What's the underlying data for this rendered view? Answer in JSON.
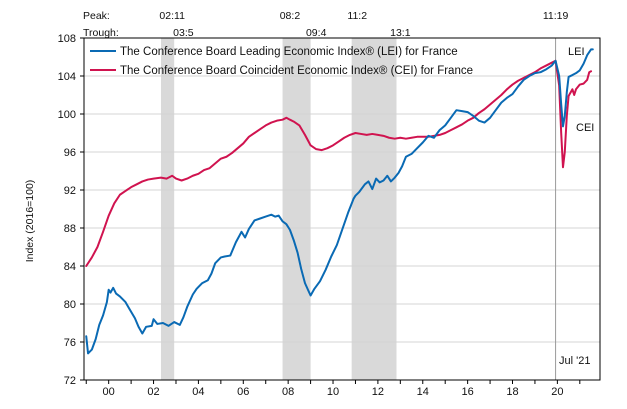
{
  "chart_data": {
    "type": "line",
    "title": "",
    "ylabel": "Index (2016=100)",
    "xlabel": "",
    "ylim": [
      72,
      108
    ],
    "y_ticks": [
      72,
      76,
      80,
      84,
      88,
      92,
      96,
      100,
      104,
      108
    ],
    "x_range": [
      1998.9,
      2021.9
    ],
    "x_tick_labels": [
      {
        "year": 2000,
        "label": "00"
      },
      {
        "year": 2002,
        "label": "02"
      },
      {
        "year": 2004,
        "label": "04"
      },
      {
        "year": 2006,
        "label": "06"
      },
      {
        "year": 2008,
        "label": "08"
      },
      {
        "year": 2010,
        "label": "10"
      },
      {
        "year": 2012,
        "label": "12"
      },
      {
        "year": 2014,
        "label": "14"
      },
      {
        "year": 2016,
        "label": "16"
      },
      {
        "year": 2018,
        "label": "18"
      },
      {
        "year": 2020,
        "label": "20"
      }
    ],
    "peak_label": "Peak:",
    "trough_label": "Trough:",
    "peaks": [
      {
        "label": "02:11",
        "year": 2002.83
      },
      {
        "label": "08:2",
        "year": 2008.08
      },
      {
        "label": "11:2",
        "year": 2011.08
      },
      {
        "label": "11:19",
        "year": 2019.92
      }
    ],
    "troughs": [
      {
        "label": "03:5",
        "year": 2003.33
      },
      {
        "label": "09:4",
        "year": 2009.25
      },
      {
        "label": "13:1",
        "year": 2013.0
      }
    ],
    "recessions": [
      {
        "start": 2002.33,
        "end": 2002.92
      },
      {
        "start": 2007.75,
        "end": 2009.0
      },
      {
        "start": 2010.83,
        "end": 2012.83
      }
    ],
    "marker_line_year": 2019.92,
    "annotations": {
      "lei": "LEI",
      "cei": "CEI",
      "date": "Jul '21"
    },
    "grid": "horizontal",
    "legend_position": "top-left",
    "series": [
      {
        "name": "The Conference Board Leading Economic Index® (LEI) for France",
        "color": "#0a6ab4",
        "points": [
          [
            1999.0,
            76.6
          ],
          [
            1999.08,
            74.8
          ],
          [
            1999.25,
            75.2
          ],
          [
            1999.42,
            76.3
          ],
          [
            1999.58,
            77.8
          ],
          [
            1999.75,
            78.8
          ],
          [
            1999.92,
            80.2
          ],
          [
            2000.0,
            81.5
          ],
          [
            2000.08,
            81.2
          ],
          [
            2000.2,
            81.7
          ],
          [
            2000.33,
            81.1
          ],
          [
            2000.5,
            80.8
          ],
          [
            2000.75,
            80.2
          ],
          [
            2000.92,
            79.5
          ],
          [
            2001.17,
            78.5
          ],
          [
            2001.33,
            77.6
          ],
          [
            2001.5,
            76.9
          ],
          [
            2001.67,
            77.6
          ],
          [
            2001.92,
            77.7
          ],
          [
            2002.0,
            78.4
          ],
          [
            2002.17,
            77.9
          ],
          [
            2002.42,
            78.0
          ],
          [
            2002.67,
            77.7
          ],
          [
            2002.92,
            78.1
          ],
          [
            2003.17,
            77.8
          ],
          [
            2003.33,
            78.6
          ],
          [
            2003.5,
            79.7
          ],
          [
            2003.75,
            81.0
          ],
          [
            2003.92,
            81.6
          ],
          [
            2004.17,
            82.2
          ],
          [
            2004.42,
            82.5
          ],
          [
            2004.58,
            83.2
          ],
          [
            2004.75,
            84.3
          ],
          [
            2005.0,
            84.9
          ],
          [
            2005.17,
            85.0
          ],
          [
            2005.42,
            85.1
          ],
          [
            2005.67,
            86.5
          ],
          [
            2005.83,
            87.2
          ],
          [
            2005.92,
            87.6
          ],
          [
            2006.08,
            87.0
          ],
          [
            2006.25,
            87.9
          ],
          [
            2006.5,
            88.8
          ],
          [
            2006.75,
            89.0
          ],
          [
            2007.0,
            89.2
          ],
          [
            2007.25,
            89.4
          ],
          [
            2007.42,
            89.2
          ],
          [
            2007.58,
            89.3
          ],
          [
            2007.75,
            88.7
          ],
          [
            2007.92,
            88.4
          ],
          [
            2008.08,
            87.8
          ],
          [
            2008.25,
            86.7
          ],
          [
            2008.42,
            85.4
          ],
          [
            2008.58,
            83.7
          ],
          [
            2008.75,
            82.2
          ],
          [
            2008.92,
            81.3
          ],
          [
            2009.0,
            80.9
          ],
          [
            2009.17,
            81.6
          ],
          [
            2009.42,
            82.4
          ],
          [
            2009.67,
            83.6
          ],
          [
            2009.92,
            85.0
          ],
          [
            2010.17,
            86.2
          ],
          [
            2010.42,
            87.9
          ],
          [
            2010.67,
            89.6
          ],
          [
            2010.92,
            91.1
          ],
          [
            2011.0,
            91.4
          ],
          [
            2011.17,
            91.8
          ],
          [
            2011.42,
            92.6
          ],
          [
            2011.58,
            92.9
          ],
          [
            2011.75,
            92.1
          ],
          [
            2011.92,
            93.2
          ],
          [
            2012.08,
            92.8
          ],
          [
            2012.25,
            93.0
          ],
          [
            2012.42,
            93.5
          ],
          [
            2012.58,
            92.9
          ],
          [
            2012.75,
            93.3
          ],
          [
            2012.92,
            93.8
          ],
          [
            2013.08,
            94.5
          ],
          [
            2013.25,
            95.5
          ],
          [
            2013.5,
            95.8
          ],
          [
            2013.75,
            96.4
          ],
          [
            2014.0,
            97.0
          ],
          [
            2014.25,
            97.7
          ],
          [
            2014.5,
            97.5
          ],
          [
            2014.75,
            98.3
          ],
          [
            2015.0,
            98.8
          ],
          [
            2015.25,
            99.6
          ],
          [
            2015.5,
            100.4
          ],
          [
            2015.75,
            100.3
          ],
          [
            2016.0,
            100.2
          ],
          [
            2016.25,
            99.8
          ],
          [
            2016.5,
            99.3
          ],
          [
            2016.75,
            99.1
          ],
          [
            2017.0,
            99.6
          ],
          [
            2017.25,
            100.4
          ],
          [
            2017.5,
            101.2
          ],
          [
            2017.75,
            101.7
          ],
          [
            2018.0,
            102.1
          ],
          [
            2018.25,
            102.9
          ],
          [
            2018.5,
            103.6
          ],
          [
            2018.75,
            104.0
          ],
          [
            2019.0,
            104.3
          ],
          [
            2019.25,
            104.4
          ],
          [
            2019.5,
            104.7
          ],
          [
            2019.75,
            105.1
          ],
          [
            2019.92,
            105.6
          ],
          [
            2020.08,
            104.0
          ],
          [
            2020.17,
            101.0
          ],
          [
            2020.25,
            98.7
          ],
          [
            2020.33,
            99.8
          ],
          [
            2020.42,
            102.3
          ],
          [
            2020.5,
            103.9
          ],
          [
            2020.67,
            104.1
          ],
          [
            2020.83,
            104.3
          ],
          [
            2021.0,
            104.6
          ],
          [
            2021.17,
            105.3
          ],
          [
            2021.33,
            106.2
          ],
          [
            2021.5,
            106.8
          ],
          [
            2021.58,
            106.8
          ]
        ]
      },
      {
        "name": "The Conference Board Coincident Economic Index® (CEI) for France",
        "color": "#d0134f",
        "points": [
          [
            1999.0,
            84.0
          ],
          [
            1999.25,
            84.9
          ],
          [
            1999.5,
            86.0
          ],
          [
            1999.75,
            87.6
          ],
          [
            2000.0,
            89.3
          ],
          [
            2000.25,
            90.6
          ],
          [
            2000.5,
            91.5
          ],
          [
            2000.75,
            91.9
          ],
          [
            2001.0,
            92.3
          ],
          [
            2001.25,
            92.6
          ],
          [
            2001.5,
            92.9
          ],
          [
            2001.75,
            93.1
          ],
          [
            2002.0,
            93.2
          ],
          [
            2002.33,
            93.3
          ],
          [
            2002.58,
            93.2
          ],
          [
            2002.83,
            93.5
          ],
          [
            2003.0,
            93.2
          ],
          [
            2003.25,
            93.0
          ],
          [
            2003.5,
            93.2
          ],
          [
            2003.75,
            93.5
          ],
          [
            2004.0,
            93.7
          ],
          [
            2004.25,
            94.1
          ],
          [
            2004.5,
            94.3
          ],
          [
            2004.75,
            94.8
          ],
          [
            2005.0,
            95.3
          ],
          [
            2005.25,
            95.5
          ],
          [
            2005.5,
            95.9
          ],
          [
            2005.75,
            96.4
          ],
          [
            2006.0,
            96.9
          ],
          [
            2006.25,
            97.6
          ],
          [
            2006.5,
            98.0
          ],
          [
            2006.75,
            98.4
          ],
          [
            2007.0,
            98.8
          ],
          [
            2007.25,
            99.1
          ],
          [
            2007.5,
            99.3
          ],
          [
            2007.75,
            99.4
          ],
          [
            2007.92,
            99.6
          ],
          [
            2008.08,
            99.4
          ],
          [
            2008.25,
            99.2
          ],
          [
            2008.5,
            98.8
          ],
          [
            2008.75,
            97.8
          ],
          [
            2009.0,
            96.7
          ],
          [
            2009.25,
            96.3
          ],
          [
            2009.5,
            96.2
          ],
          [
            2009.75,
            96.4
          ],
          [
            2010.0,
            96.7
          ],
          [
            2010.25,
            97.1
          ],
          [
            2010.5,
            97.5
          ],
          [
            2010.75,
            97.8
          ],
          [
            2011.0,
            98.0
          ],
          [
            2011.25,
            97.9
          ],
          [
            2011.5,
            97.8
          ],
          [
            2011.75,
            97.9
          ],
          [
            2012.0,
            97.8
          ],
          [
            2012.25,
            97.7
          ],
          [
            2012.5,
            97.5
          ],
          [
            2012.75,
            97.4
          ],
          [
            2013.0,
            97.5
          ],
          [
            2013.25,
            97.4
          ],
          [
            2013.5,
            97.5
          ],
          [
            2013.75,
            97.6
          ],
          [
            2014.0,
            97.6
          ],
          [
            2014.25,
            97.6
          ],
          [
            2014.5,
            97.7
          ],
          [
            2014.75,
            97.8
          ],
          [
            2015.0,
            98.0
          ],
          [
            2015.25,
            98.3
          ],
          [
            2015.5,
            98.6
          ],
          [
            2015.75,
            98.9
          ],
          [
            2016.0,
            99.3
          ],
          [
            2016.25,
            99.6
          ],
          [
            2016.5,
            100.1
          ],
          [
            2016.75,
            100.5
          ],
          [
            2017.0,
            101.0
          ],
          [
            2017.25,
            101.5
          ],
          [
            2017.5,
            102.0
          ],
          [
            2017.75,
            102.6
          ],
          [
            2018.0,
            103.1
          ],
          [
            2018.25,
            103.5
          ],
          [
            2018.5,
            103.8
          ],
          [
            2018.75,
            104.1
          ],
          [
            2019.0,
            104.4
          ],
          [
            2019.25,
            104.8
          ],
          [
            2019.5,
            105.1
          ],
          [
            2019.75,
            105.4
          ],
          [
            2019.92,
            105.6
          ],
          [
            2020.08,
            103.0
          ],
          [
            2020.17,
            98.0
          ],
          [
            2020.25,
            94.4
          ],
          [
            2020.33,
            96.0
          ],
          [
            2020.42,
            99.8
          ],
          [
            2020.5,
            101.9
          ],
          [
            2020.67,
            102.6
          ],
          [
            2020.75,
            102.0
          ],
          [
            2020.83,
            102.6
          ],
          [
            2021.0,
            103.1
          ],
          [
            2021.17,
            103.2
          ],
          [
            2021.33,
            103.6
          ],
          [
            2021.42,
            104.4
          ],
          [
            2021.5,
            104.5
          ]
        ]
      }
    ]
  }
}
